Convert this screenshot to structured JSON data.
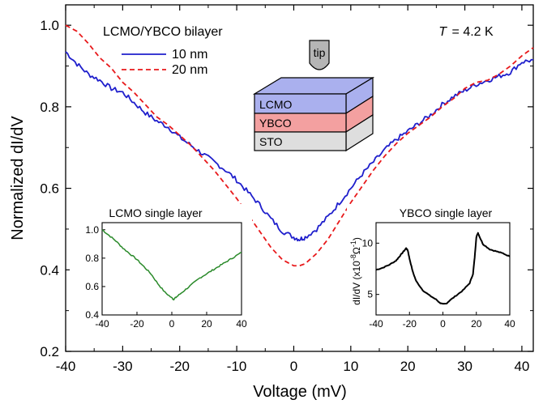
{
  "chart_data": {
    "type": "line",
    "xlabel": "Voltage (mV)",
    "ylabel": "Normalized dI/dV",
    "xlim": [
      -40,
      42
    ],
    "ylim": [
      0.2,
      1.05
    ],
    "xticks": [
      -40,
      -30,
      -20,
      -10,
      0,
      10,
      20,
      30,
      40
    ],
    "yticks": [
      0.2,
      0.4,
      0.6,
      0.8,
      1.0
    ],
    "xtick_labels": [
      "-40",
      "-30",
      "-20",
      "-10",
      "0",
      "10",
      "20",
      "30",
      "40"
    ],
    "ytick_labels": [
      "0.2",
      "0.4",
      "0.6",
      "0.8",
      "1.0"
    ],
    "temperature_label": "= 4.2 K",
    "temperature_symbol": "T",
    "legend_title": "LCMO/YBCO bilayer",
    "series": [
      {
        "name": "10 nm",
        "color": "#1f1fcc",
        "style": "solid",
        "x": [
          -40,
          -38,
          -36,
          -34,
          -32,
          -30,
          -28,
          -26,
          -24,
          -22,
          -20,
          -18,
          -16,
          -14,
          -12,
          -10,
          -8,
          -6,
          -4,
          -2,
          0,
          1,
          2,
          4,
          6,
          8,
          10,
          12,
          14,
          16,
          18,
          20,
          22,
          24,
          26,
          28,
          30,
          32,
          34,
          36,
          38,
          40,
          42
        ],
        "y": [
          0.935,
          0.905,
          0.88,
          0.865,
          0.845,
          0.835,
          0.81,
          0.785,
          0.765,
          0.75,
          0.725,
          0.705,
          0.685,
          0.665,
          0.645,
          0.62,
          0.59,
          0.56,
          0.525,
          0.495,
          0.48,
          0.475,
          0.48,
          0.5,
          0.53,
          0.565,
          0.6,
          0.635,
          0.665,
          0.695,
          0.72,
          0.74,
          0.76,
          0.78,
          0.805,
          0.825,
          0.84,
          0.855,
          0.865,
          0.875,
          0.885,
          0.91,
          0.915
        ]
      },
      {
        "name": "20 nm",
        "color": "#e8191b",
        "style": "dashed",
        "x": [
          -40,
          -38,
          -36,
          -34,
          -32,
          -30,
          -28,
          -26,
          -24,
          -22,
          -20,
          -18,
          -16,
          -14,
          -12,
          -10,
          -8,
          -6,
          -4,
          -2,
          0,
          1,
          2,
          4,
          6,
          8,
          10,
          12,
          14,
          16,
          18,
          20,
          22,
          24,
          26,
          28,
          30,
          32,
          34,
          36,
          38,
          40,
          42
        ],
        "y": [
          1.0,
          0.985,
          0.955,
          0.92,
          0.895,
          0.86,
          0.835,
          0.805,
          0.775,
          0.755,
          0.73,
          0.705,
          0.675,
          0.645,
          0.61,
          0.575,
          0.535,
          0.495,
          0.455,
          0.425,
          0.41,
          0.41,
          0.415,
          0.44,
          0.475,
          0.52,
          0.565,
          0.605,
          0.645,
          0.68,
          0.71,
          0.735,
          0.755,
          0.775,
          0.8,
          0.82,
          0.845,
          0.86,
          0.865,
          0.88,
          0.9,
          0.925,
          0.945
        ]
      }
    ],
    "schematic": {
      "tip_label": "tip",
      "layers": [
        {
          "name": "LCMO",
          "color": "#aab0ee"
        },
        {
          "name": "YBCO",
          "color": "#f3a0a0"
        },
        {
          "name": "STO",
          "color": "#dedede"
        }
      ]
    },
    "insets": [
      {
        "title": "LCMO single layer",
        "type": "line",
        "color": "#2a8a2a",
        "xlim": [
          -40,
          40
        ],
        "ylim": [
          0.4,
          1.05
        ],
        "xticks": [
          "-40",
          "-20",
          "0",
          "20",
          "40"
        ],
        "yticks": [
          "0.4",
          "0.6",
          "0.8",
          "1.0"
        ],
        "ytick_values": [
          0.4,
          0.6,
          0.8,
          1.0
        ],
        "x": [
          -40,
          -36,
          -32,
          -28,
          -24,
          -20,
          -16,
          -12,
          -8,
          -4,
          0,
          1,
          2,
          4,
          8,
          12,
          16,
          20,
          24,
          28,
          32,
          36,
          40
        ],
        "y": [
          1.0,
          0.96,
          0.92,
          0.87,
          0.83,
          0.79,
          0.74,
          0.69,
          0.62,
          0.56,
          0.52,
          0.51,
          0.52,
          0.54,
          0.58,
          0.62,
          0.66,
          0.69,
          0.72,
          0.75,
          0.78,
          0.81,
          0.84
        ]
      },
      {
        "title": "YBCO single layer",
        "type": "line",
        "color": "#000000",
        "ylabel": "dI/dV (x10",
        "ylabel_sup": "-8",
        "ylabel_unit": "Ω",
        "ylabel_sup2": "-1",
        "ylabel_close": ")",
        "xlim": [
          -40,
          40
        ],
        "ylim": [
          3,
          12
        ],
        "xticks": [
          "-40",
          "-20",
          "0",
          "20",
          "40"
        ],
        "yticks": [
          "5",
          "10"
        ],
        "ytick_values": [
          5,
          10
        ],
        "x": [
          -40,
          -36,
          -32,
          -28,
          -26,
          -24,
          -22,
          -21,
          -20,
          -18,
          -16,
          -12,
          -8,
          -4,
          -2,
          0,
          2,
          4,
          8,
          12,
          16,
          18,
          19,
          20,
          21,
          22,
          24,
          28,
          32,
          36,
          40
        ],
        "y": [
          7.4,
          7.6,
          7.9,
          8.3,
          8.7,
          9.1,
          9.5,
          9.3,
          8.5,
          7.2,
          6.3,
          5.4,
          4.9,
          4.5,
          4.2,
          4.05,
          4.1,
          4.4,
          4.9,
          5.4,
          6.1,
          7.0,
          8.6,
          10.6,
          11.0,
          10.6,
          9.9,
          9.4,
          9.2,
          9.0,
          8.7
        ]
      }
    ]
  }
}
